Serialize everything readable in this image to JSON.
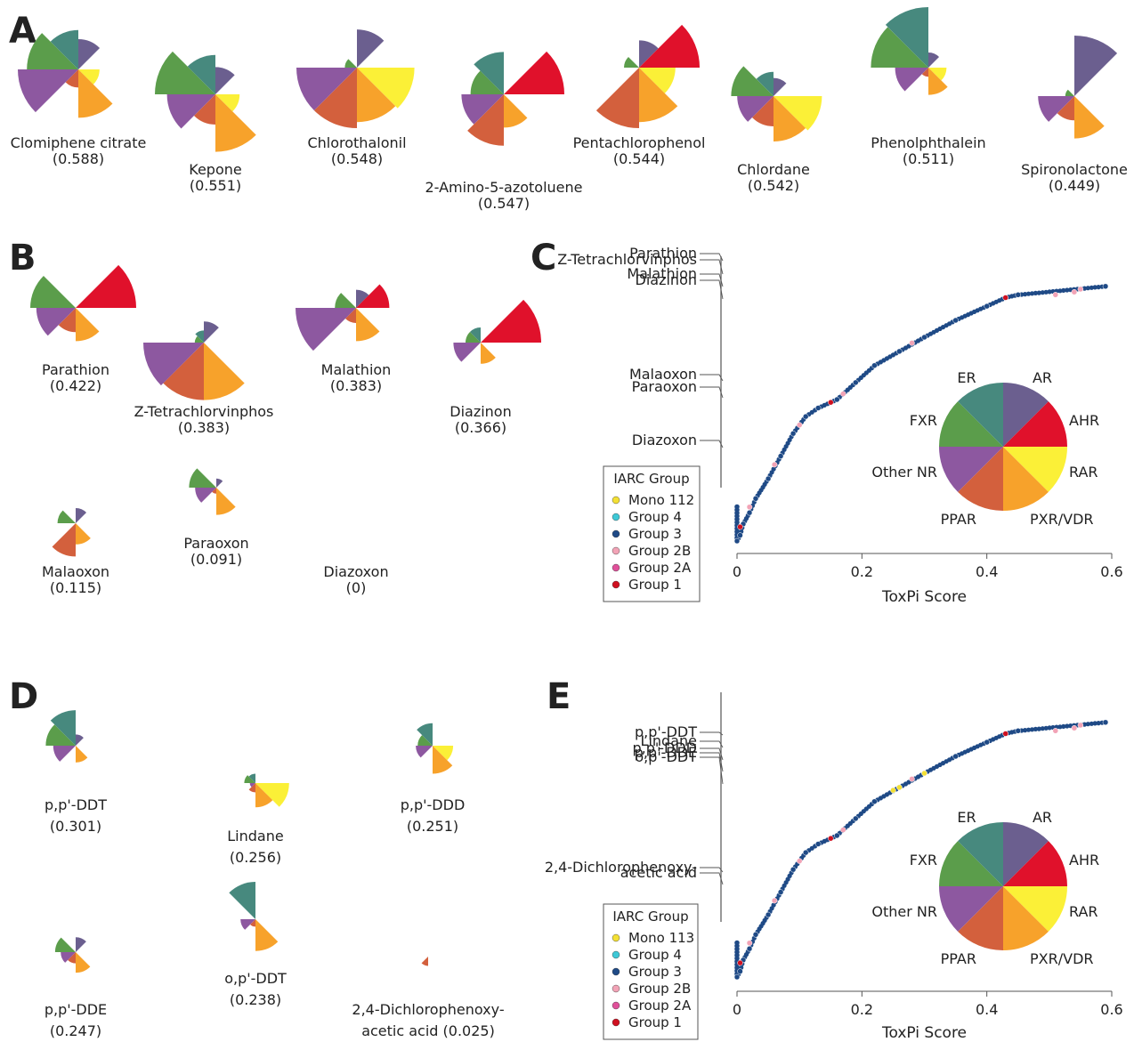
{
  "colors": {
    "AR": "#6b5f8f",
    "AHR": "#e0112b",
    "RAR": "#fbf037",
    "PXR/VDR": "#f7a22b",
    "PPAR": "#d3603d",
    "Other NR": "#8d58a0",
    "FXR": "#5b9d4b",
    "ER": "#47897e"
  },
  "panels": {
    "A": {
      "label": "A",
      "items": [
        {
          "name": "Clomiphene citrate",
          "score": "(0.588)",
          "wedges": [
            0.5,
            0.0,
            0.35,
            0.8,
            0.3,
            1.0,
            0.85,
            0.65
          ]
        },
        {
          "name": "Kepone",
          "score": "(0.551)",
          "wedges": [
            0.45,
            0.0,
            0.4,
            0.95,
            0.5,
            0.8,
            1.0,
            0.65
          ]
        },
        {
          "name": "Chlorothalonil",
          "score": "(0.548)",
          "wedges": [
            0.63,
            0.0,
            0.95,
            0.9,
            1.0,
            1.0,
            0.2,
            0.0
          ]
        },
        {
          "name": "2-Amino-5-azotoluene",
          "score": "(0.547)",
          "wedges": [
            0.0,
            1.0,
            0.0,
            0.55,
            0.85,
            0.7,
            0.55,
            0.7
          ]
        },
        {
          "name": "Pentachlorophenol",
          "score": "(0.544)",
          "wedges": [
            0.45,
            1.0,
            0.6,
            0.9,
            1.0,
            0.0,
            0.25,
            0.0
          ]
        },
        {
          "name": "Chlordane",
          "score": "(0.542)",
          "wedges": [
            0.3,
            0.0,
            0.8,
            0.75,
            0.5,
            0.6,
            0.7,
            0.4
          ]
        },
        {
          "name": "Phenolphthalein",
          "score": "(0.511)",
          "wedges": [
            0.25,
            0.0,
            0.3,
            0.45,
            0.15,
            0.55,
            0.95,
            1.0
          ]
        },
        {
          "name": "Spironolactone",
          "score": "(0.449)",
          "wedges": [
            1.0,
            0.0,
            0.0,
            0.7,
            0.4,
            0.6,
            0.15,
            0.0
          ]
        }
      ]
    },
    "B": {
      "label": "B",
      "items": [
        {
          "name": "Parathion",
          "score": "(0.422)",
          "wedges": [
            0.0,
            1.0,
            0.0,
            0.55,
            0.4,
            0.65,
            0.75,
            0.0
          ]
        },
        {
          "name": "Z-Tetrachlorvinphos",
          "score": "(0.383)",
          "wedges": [
            0.35,
            0.0,
            0.0,
            0.95,
            0.95,
            1.0,
            0.15,
            0.2
          ]
        },
        {
          "name": "Malathion",
          "score": "(0.383)",
          "wedges": [
            0.3,
            0.55,
            0.0,
            0.55,
            0.25,
            1.0,
            0.35,
            0.0
          ]
        },
        {
          "name": "Diazinon",
          "score": "(0.366)",
          "wedges": [
            0.0,
            1.0,
            0.0,
            0.35,
            0.0,
            0.45,
            0.25,
            0.25
          ]
        },
        {
          "name": "Malaoxon",
          "score": "(0.115)",
          "wedges": [
            0.25,
            0.0,
            0.0,
            0.35,
            0.55,
            0.0,
            0.3,
            0.0
          ]
        },
        {
          "name": "Paraoxon",
          "score": "(0.091)",
          "wedges": [
            0.15,
            0.0,
            0.0,
            0.45,
            0.1,
            0.35,
            0.45,
            0.0
          ]
        },
        {
          "name": "Diazoxon",
          "score": "(0)",
          "wedges": [
            0,
            0,
            0,
            0,
            0,
            0,
            0,
            0
          ]
        }
      ]
    },
    "D": {
      "label": "D",
      "items": [
        {
          "name": "p,p'-DDT",
          "score": "(0.301)",
          "wedges": [
            0.3,
            0.0,
            0.0,
            0.45,
            0.0,
            0.6,
            0.8,
            0.95
          ]
        },
        {
          "name": "Lindane",
          "score": "(0.256)",
          "wedges": [
            0.0,
            0.0,
            0.9,
            0.65,
            0.25,
            0.15,
            0.3,
            0.25
          ]
        },
        {
          "name": "p,p'-DDD",
          "score": "(0.251)",
          "wedges": [
            0.0,
            0.0,
            0.55,
            0.75,
            0.0,
            0.45,
            0.4,
            0.6
          ]
        },
        {
          "name": "p,p'-DDE",
          "score": "(0.247)",
          "wedges": [
            0.4,
            0.0,
            0.0,
            0.55,
            0.3,
            0.4,
            0.55,
            0.0
          ]
        },
        {
          "name": "o,p'-DDT",
          "score": "(0.238)",
          "wedges": [
            0.0,
            0.0,
            0.0,
            0.85,
            0.2,
            0.4,
            0.0,
            1.0
          ]
        },
        {
          "name": "2,4-Dichlorophenoxy-",
          "name2": "acetic acid (0.025)",
          "wedges": [
            0.0,
            0.0,
            0.0,
            0.0,
            0.25,
            0.0,
            0.0,
            0.0
          ]
        }
      ]
    },
    "C": {
      "label": "C",
      "annotations": [
        "Parathion",
        "Z-Tetrachlorvinphos",
        "Malathion",
        "Diazinon",
        "Malaoxon",
        "Paraoxon",
        "Diazoxon"
      ],
      "legend_title": "IARC Group",
      "legend": [
        "Mono 112",
        "Group 4",
        "Group 3",
        "Group 2B",
        "Group 2A",
        "Group 1"
      ]
    },
    "E": {
      "label": "E",
      "annotations": [
        "p,p'-DDT",
        "Lindane",
        "p,p'-DDD",
        "p,p'-DDE",
        "o,p'-DDT",
        "2,4-Dichlorophenoxy-",
        "acetic acid"
      ],
      "legend_title": "IARC Group",
      "legend": [
        "Mono 113",
        "Group 4",
        "Group 3",
        "Group 2B",
        "Group 2A",
        "Group 1"
      ]
    }
  },
  "key_pie": {
    "labels": [
      "ER",
      "AR",
      "AHR",
      "RAR",
      "PXR/VDR",
      "PPAR",
      "Other NR",
      "FXR"
    ]
  },
  "legend_colors": [
    "#f3e034",
    "#3ec8d6",
    "#1f4a86",
    "#f2a3b6",
    "#e0509a",
    "#cf1020"
  ],
  "chart_data": [
    {
      "type": "scatter",
      "panel": "C",
      "xlabel": "ToxPi Score",
      "ylabel": "",
      "xlim": [
        0,
        0.6
      ],
      "ticks": [
        "0",
        "0.2",
        "0.4",
        "0.6"
      ],
      "tick_values": [
        0,
        0.2,
        0.4,
        0.6
      ],
      "series": [
        {
          "name": "Group 3",
          "points": [
            [
              0,
              0
            ],
            [
              0.005,
              0.02
            ],
            [
              0.01,
              0.06
            ],
            [
              0.02,
              0.1
            ],
            [
              0.03,
              0.15
            ],
            [
              0.05,
              0.22
            ],
            [
              0.07,
              0.3
            ],
            [
              0.09,
              0.38
            ],
            [
              0.11,
              0.44
            ],
            [
              0.13,
              0.47
            ],
            [
              0.16,
              0.5
            ],
            [
              0.19,
              0.56
            ],
            [
              0.22,
              0.62
            ],
            [
              0.26,
              0.67
            ],
            [
              0.3,
              0.72
            ],
            [
              0.35,
              0.78
            ],
            [
              0.4,
              0.83
            ],
            [
              0.43,
              0.86
            ],
            [
              0.45,
              0.87
            ],
            [
              0.59,
              0.9
            ]
          ]
        },
        {
          "name": "Group 2B",
          "points": [
            [
              0.02,
              0.12
            ],
            [
              0.06,
              0.27
            ],
            [
              0.1,
              0.41
            ],
            [
              0.17,
              0.52
            ],
            [
              0.28,
              0.7
            ],
            [
              0.51,
              0.87
            ],
            [
              0.54,
              0.88
            ],
            [
              0.55,
              0.89
            ]
          ]
        },
        {
          "name": "Group 1",
          "points": [
            [
              0.005,
              0.05
            ],
            [
              0.15,
              0.49
            ],
            [
              0.43,
              0.86
            ]
          ]
        }
      ]
    },
    {
      "type": "scatter",
      "panel": "E",
      "xlabel": "ToxPi Score",
      "ylabel": "",
      "xlim": [
        0,
        0.6
      ],
      "ticks": [
        "0",
        "0.2",
        "0.4",
        "0.6"
      ],
      "tick_values": [
        0,
        0.2,
        0.4,
        0.6
      ],
      "series": [
        {
          "name": "Group 3",
          "points": [
            [
              0,
              0
            ],
            [
              0.005,
              0.02
            ],
            [
              0.01,
              0.06
            ],
            [
              0.02,
              0.1
            ],
            [
              0.03,
              0.15
            ],
            [
              0.05,
              0.22
            ],
            [
              0.07,
              0.3
            ],
            [
              0.09,
              0.38
            ],
            [
              0.11,
              0.44
            ],
            [
              0.13,
              0.47
            ],
            [
              0.16,
              0.5
            ],
            [
              0.19,
              0.56
            ],
            [
              0.22,
              0.62
            ],
            [
              0.26,
              0.67
            ],
            [
              0.3,
              0.72
            ],
            [
              0.35,
              0.78
            ],
            [
              0.4,
              0.83
            ],
            [
              0.43,
              0.86
            ],
            [
              0.45,
              0.87
            ],
            [
              0.59,
              0.9
            ]
          ]
        },
        {
          "name": "Group 2B",
          "points": [
            [
              0.02,
              0.12
            ],
            [
              0.06,
              0.27
            ],
            [
              0.1,
              0.41
            ],
            [
              0.17,
              0.52
            ],
            [
              0.28,
              0.7
            ],
            [
              0.51,
              0.87
            ],
            [
              0.54,
              0.88
            ],
            [
              0.55,
              0.89
            ]
          ]
        },
        {
          "name": "Group 1",
          "points": [
            [
              0.005,
              0.05
            ],
            [
              0.15,
              0.49
            ],
            [
              0.43,
              0.86
            ]
          ]
        },
        {
          "name": "Mono 113",
          "points": [
            [
              0.25,
              0.66
            ],
            [
              0.26,
              0.67
            ],
            [
              0.3,
              0.72
            ]
          ]
        }
      ]
    }
  ]
}
